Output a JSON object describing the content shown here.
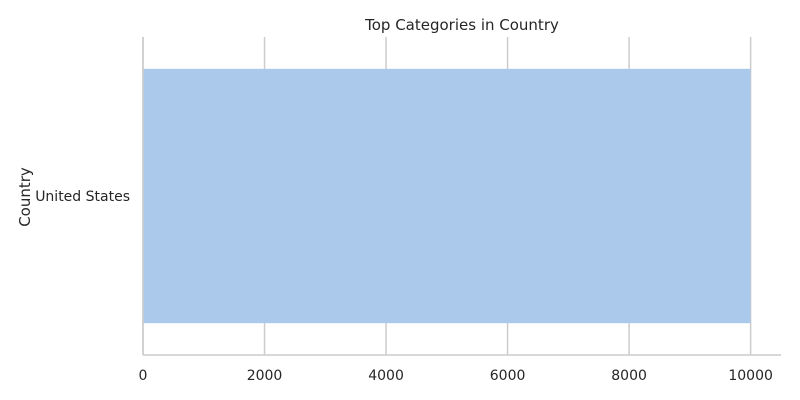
{
  "chart_data": {
    "type": "bar",
    "orientation": "horizontal",
    "title": "Top Categories in Country",
    "xlabel": "",
    "ylabel": "Country",
    "categories": [
      "United States"
    ],
    "values": [
      10000
    ],
    "xlim": [
      0,
      10500
    ],
    "xticks": [
      0,
      2000,
      4000,
      6000,
      8000,
      10000
    ],
    "grid": true,
    "legend": "none",
    "bar_color": "#abc9ea",
    "grid_color": "#cccccc",
    "text_color": "#262626"
  }
}
